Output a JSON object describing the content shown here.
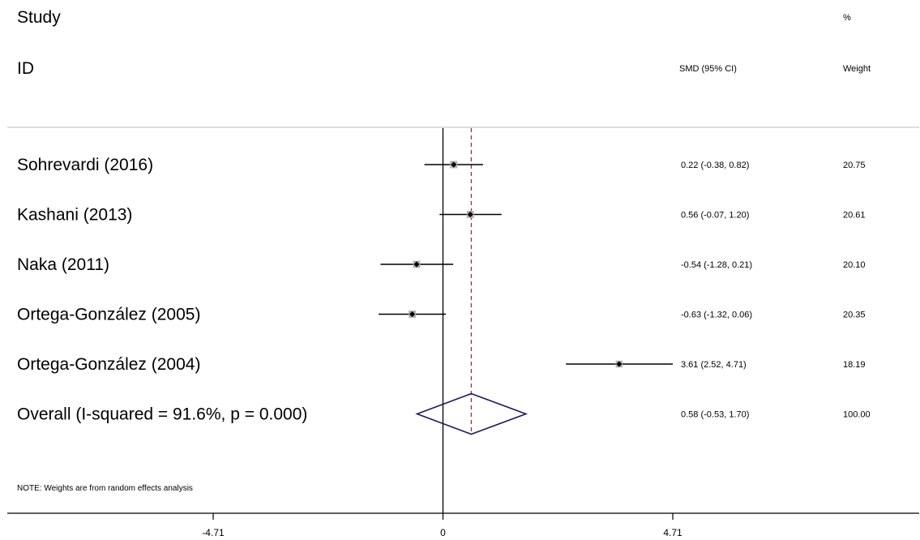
{
  "header": {
    "study": "Study",
    "id": "ID",
    "smd": "SMD (95% CI)",
    "percent": "%",
    "weight": "Weight"
  },
  "note": "NOTE: Weights are from random effects analysis",
  "chart_data": {
    "type": "forest",
    "xticks": [
      -4.71,
      0,
      4.71
    ],
    "xtick_labels": [
      "-4.71",
      "0",
      "4.71"
    ],
    "studies": [
      {
        "label": "Sohrevardi (2016)",
        "smd": 0.22,
        "lo": -0.38,
        "hi": 0.82,
        "ci_text": "0.22 (-0.38, 0.82)",
        "weight": "20.75"
      },
      {
        "label": "Kashani (2013)",
        "smd": 0.56,
        "lo": -0.07,
        "hi": 1.2,
        "ci_text": "0.56 (-0.07, 1.20)",
        "weight": "20.61"
      },
      {
        "label": "Naka (2011)",
        "smd": -0.54,
        "lo": -1.28,
        "hi": 0.21,
        "ci_text": "-0.54 (-1.28, 0.21)",
        "weight": "20.10"
      },
      {
        "label": "Ortega-González (2005)",
        "smd": -0.63,
        "lo": -1.32,
        "hi": 0.06,
        "ci_text": "-0.63 (-1.32, 0.06)",
        "weight": "20.35"
      },
      {
        "label": "Ortega-González (2004)",
        "smd": 3.61,
        "lo": 2.52,
        "hi": 4.71,
        "ci_text": "3.61 (2.52, 4.71)",
        "weight": "18.19"
      }
    ],
    "overall": {
      "label": "Overall  (I-squared = 91.6%, p = 0.000)",
      "smd": 0.58,
      "lo": -0.53,
      "hi": 1.7,
      "ci_text": "0.58 (-0.53, 1.70)",
      "weight": "100.00"
    },
    "colors": {
      "diamond": "#1a1a6e",
      "overall_line": "#a0282d",
      "ci_line": "#000000",
      "marker": "#000000",
      "weight_box": "#b3b3b3"
    }
  }
}
